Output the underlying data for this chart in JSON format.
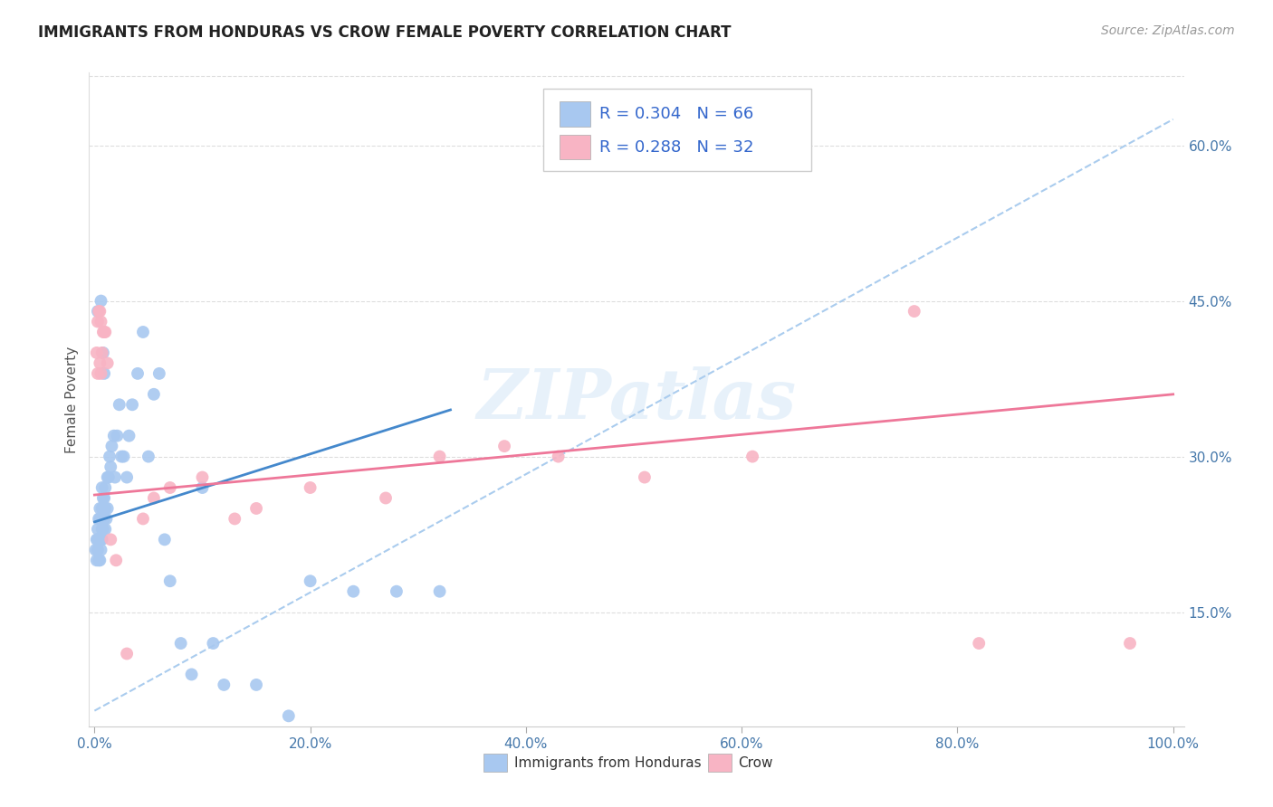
{
  "title": "IMMIGRANTS FROM HONDURAS VS CROW FEMALE POVERTY CORRELATION CHART",
  "source": "Source: ZipAtlas.com",
  "ylabel": "Female Poverty",
  "ytick_labels": [
    "15.0%",
    "30.0%",
    "45.0%",
    "60.0%"
  ],
  "ytick_values": [
    0.15,
    0.3,
    0.45,
    0.6
  ],
  "xtick_labels": [
    "0.0%",
    "20.0%",
    "40.0%",
    "60.0%",
    "80.0%",
    "100.0%"
  ],
  "xtick_values": [
    0.0,
    0.2,
    0.4,
    0.6,
    0.8,
    1.0
  ],
  "xlim": [
    -0.005,
    1.01
  ],
  "ylim": [
    0.04,
    0.67
  ],
  "legend_r1": "R = 0.304",
  "legend_n1": "N = 66",
  "legend_r2": "R = 0.288",
  "legend_n2": "N = 32",
  "color_blue": "#A8C8F0",
  "color_pink": "#F8B4C4",
  "color_trendline_blue": "#4488CC",
  "color_trendline_pink": "#EE7799",
  "color_dashed": "#AACCEE",
  "watermark": "ZIPatlas",
  "blue_scatter_x": [
    0.001,
    0.002,
    0.002,
    0.003,
    0.003,
    0.003,
    0.004,
    0.004,
    0.004,
    0.005,
    0.005,
    0.005,
    0.005,
    0.006,
    0.006,
    0.006,
    0.007,
    0.007,
    0.007,
    0.007,
    0.008,
    0.008,
    0.008,
    0.009,
    0.009,
    0.01,
    0.01,
    0.01,
    0.011,
    0.012,
    0.012,
    0.013,
    0.014,
    0.015,
    0.016,
    0.018,
    0.019,
    0.021,
    0.023,
    0.025,
    0.027,
    0.03,
    0.032,
    0.035,
    0.04,
    0.045,
    0.05,
    0.055,
    0.06,
    0.065,
    0.07,
    0.08,
    0.09,
    0.1,
    0.11,
    0.12,
    0.15,
    0.18,
    0.2,
    0.24,
    0.28,
    0.32,
    0.003,
    0.006,
    0.008,
    0.009
  ],
  "blue_scatter_y": [
    0.21,
    0.2,
    0.22,
    0.21,
    0.22,
    0.23,
    0.2,
    0.22,
    0.24,
    0.2,
    0.22,
    0.24,
    0.25,
    0.21,
    0.22,
    0.24,
    0.22,
    0.23,
    0.25,
    0.27,
    0.23,
    0.25,
    0.26,
    0.24,
    0.26,
    0.23,
    0.25,
    0.27,
    0.24,
    0.25,
    0.28,
    0.28,
    0.3,
    0.29,
    0.31,
    0.32,
    0.28,
    0.32,
    0.35,
    0.3,
    0.3,
    0.28,
    0.32,
    0.35,
    0.38,
    0.42,
    0.3,
    0.36,
    0.38,
    0.22,
    0.18,
    0.12,
    0.09,
    0.27,
    0.12,
    0.08,
    0.08,
    0.05,
    0.18,
    0.17,
    0.17,
    0.17,
    0.44,
    0.45,
    0.4,
    0.38
  ],
  "pink_scatter_x": [
    0.002,
    0.003,
    0.003,
    0.004,
    0.005,
    0.005,
    0.006,
    0.006,
    0.007,
    0.008,
    0.009,
    0.01,
    0.012,
    0.015,
    0.02,
    0.03,
    0.045,
    0.055,
    0.07,
    0.1,
    0.13,
    0.15,
    0.2,
    0.27,
    0.32,
    0.38,
    0.43,
    0.51,
    0.61,
    0.76,
    0.82,
    0.96
  ],
  "pink_scatter_y": [
    0.4,
    0.38,
    0.43,
    0.44,
    0.44,
    0.39,
    0.43,
    0.38,
    0.4,
    0.42,
    0.42,
    0.42,
    0.39,
    0.22,
    0.2,
    0.11,
    0.24,
    0.26,
    0.27,
    0.28,
    0.24,
    0.25,
    0.27,
    0.26,
    0.3,
    0.31,
    0.3,
    0.28,
    0.3,
    0.44,
    0.12,
    0.12
  ],
  "blue_trend_x": [
    0.0,
    0.33
  ],
  "blue_trend_y": [
    0.237,
    0.345
  ],
  "pink_trend_x": [
    0.0,
    1.0
  ],
  "pink_trend_y": [
    0.263,
    0.36
  ],
  "dashed_trend_x": [
    0.0,
    1.0
  ],
  "dashed_trend_y": [
    0.055,
    0.625
  ]
}
